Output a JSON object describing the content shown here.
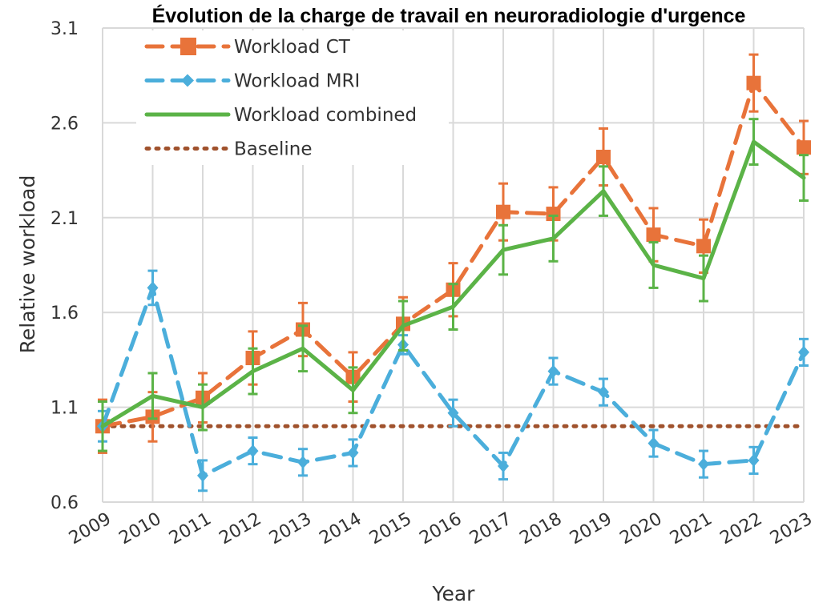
{
  "chart_data": {
    "type": "line",
    "title": "Évolution de la charge de travail en neuroradiologie d'urgence",
    "xlabel": "Year",
    "ylabel": "Relative workload",
    "ylim": [
      0.6,
      3.1
    ],
    "yticks": [
      "0.6",
      "1.1",
      "1.6",
      "2.1",
      "2.6",
      "3.1"
    ],
    "x": [
      "2009",
      "2010",
      "2011",
      "2012",
      "2013",
      "2014",
      "2015",
      "2016",
      "2017",
      "2018",
      "2019",
      "2020",
      "2021",
      "2022",
      "2023"
    ],
    "grid": true,
    "legend_position": "top-left",
    "series": [
      {
        "name": "Workload CT",
        "color": "#E8733A",
        "style": "dashed",
        "marker": "square",
        "values": [
          1.0,
          1.05,
          1.15,
          1.36,
          1.51,
          1.26,
          1.54,
          1.72,
          2.13,
          2.12,
          2.42,
          2.01,
          1.95,
          2.81,
          2.47
        ],
        "errors": [
          0.14,
          0.13,
          0.13,
          0.14,
          0.14,
          0.13,
          0.14,
          0.14,
          0.15,
          0.14,
          0.15,
          0.14,
          0.14,
          0.15,
          0.14
        ]
      },
      {
        "name": "Workload MRI",
        "color": "#4BAEDB",
        "style": "dashed",
        "marker": "diamond",
        "values": [
          1.0,
          1.73,
          0.74,
          0.87,
          0.81,
          0.86,
          1.43,
          1.07,
          0.79,
          1.29,
          1.18,
          0.91,
          0.8,
          0.82,
          1.39
        ],
        "errors": [
          0.08,
          0.09,
          0.08,
          0.07,
          0.07,
          0.07,
          0.05,
          0.07,
          0.07,
          0.07,
          0.07,
          0.07,
          0.07,
          0.07,
          0.07
        ]
      },
      {
        "name": "Workload combined",
        "color": "#5BB347",
        "style": "solid",
        "marker": "none",
        "values": [
          1.0,
          1.16,
          1.1,
          1.29,
          1.41,
          1.19,
          1.53,
          1.63,
          1.93,
          1.99,
          2.24,
          1.85,
          1.78,
          2.5,
          2.31
        ],
        "errors": [
          0.13,
          0.12,
          0.12,
          0.12,
          0.12,
          0.12,
          0.13,
          0.12,
          0.13,
          0.12,
          0.13,
          0.12,
          0.12,
          0.12,
          0.12
        ]
      },
      {
        "name": "Baseline",
        "color": "#A0522D",
        "style": "dotted",
        "marker": "none",
        "values": [
          1,
          1,
          1,
          1,
          1,
          1,
          1,
          1,
          1,
          1,
          1,
          1,
          1,
          1,
          1
        ]
      }
    ]
  }
}
